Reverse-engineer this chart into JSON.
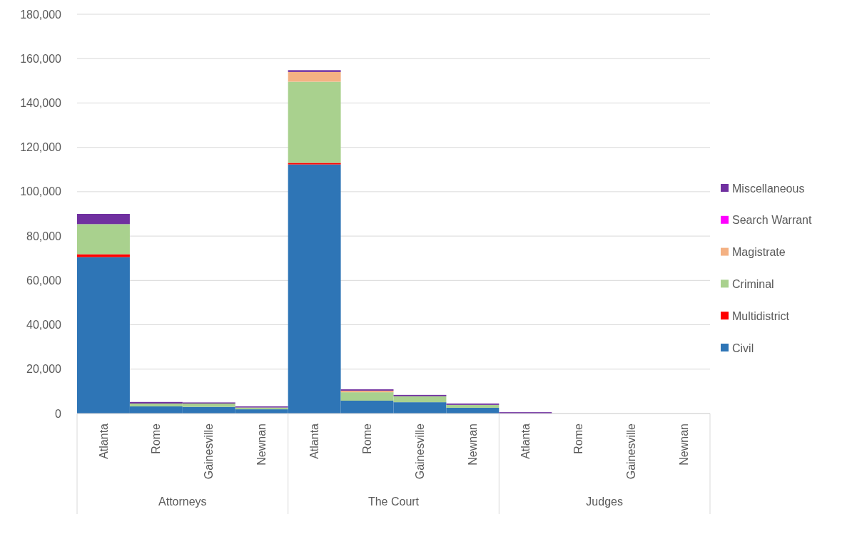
{
  "chart_data": {
    "type": "bar",
    "stacked": true,
    "categories": [
      "Atlanta",
      "Rome",
      "Gainesville",
      "Newnan",
      "Atlanta",
      "Rome",
      "Gainesville",
      "Newnan",
      "Atlanta",
      "Rome",
      "Gainesville",
      "Newnan"
    ],
    "annotations": [
      "Attorneys",
      "The Court",
      "Judges"
    ],
    "series": [
      {
        "name": "Civil",
        "color": "#2e75b6",
        "values": [
          70500,
          3200,
          3000,
          1900,
          112300,
          5800,
          5100,
          2600,
          0,
          0,
          0,
          0
        ]
      },
      {
        "name": "Multidistrict",
        "color": "#ff0000",
        "values": [
          1300,
          0,
          0,
          0,
          700,
          0,
          0,
          0,
          0,
          0,
          0,
          0
        ]
      },
      {
        "name": "Criminal",
        "color": "#a9d18e",
        "values": [
          13600,
          1300,
          1500,
          800,
          36600,
          3800,
          2700,
          1300,
          0,
          0,
          0,
          0
        ]
      },
      {
        "name": "Magistrate",
        "color": "#f4b183",
        "values": [
          0,
          0,
          0,
          0,
          4400,
          700,
          0,
          0,
          0,
          0,
          0,
          0
        ]
      },
      {
        "name": "Search Warrant",
        "color": "#ff00ff",
        "values": [
          0,
          0,
          0,
          0,
          0,
          0,
          0,
          0,
          0,
          0,
          0,
          0
        ]
      },
      {
        "name": "Miscellaneous",
        "color": "#7030a0",
        "values": [
          4600,
          700,
          500,
          500,
          800,
          600,
          600,
          600,
          600,
          0,
          0,
          0
        ]
      }
    ],
    "ylim": [
      0,
      180000
    ],
    "yticks": [
      {
        "value": 0,
        "label": "0"
      },
      {
        "value": 20000,
        "label": "20,000"
      },
      {
        "value": 40000,
        "label": "40,000"
      },
      {
        "value": 60000,
        "label": "60,000"
      },
      {
        "value": 80000,
        "label": "80,000"
      },
      {
        "value": 100000,
        "label": "100,000"
      },
      {
        "value": 120000,
        "label": "120,000"
      },
      {
        "value": 140000,
        "label": "140,000"
      },
      {
        "value": 160000,
        "label": "160,000"
      },
      {
        "value": 180000,
        "label": "180,000"
      }
    ],
    "grid": "y",
    "legend": "right"
  }
}
